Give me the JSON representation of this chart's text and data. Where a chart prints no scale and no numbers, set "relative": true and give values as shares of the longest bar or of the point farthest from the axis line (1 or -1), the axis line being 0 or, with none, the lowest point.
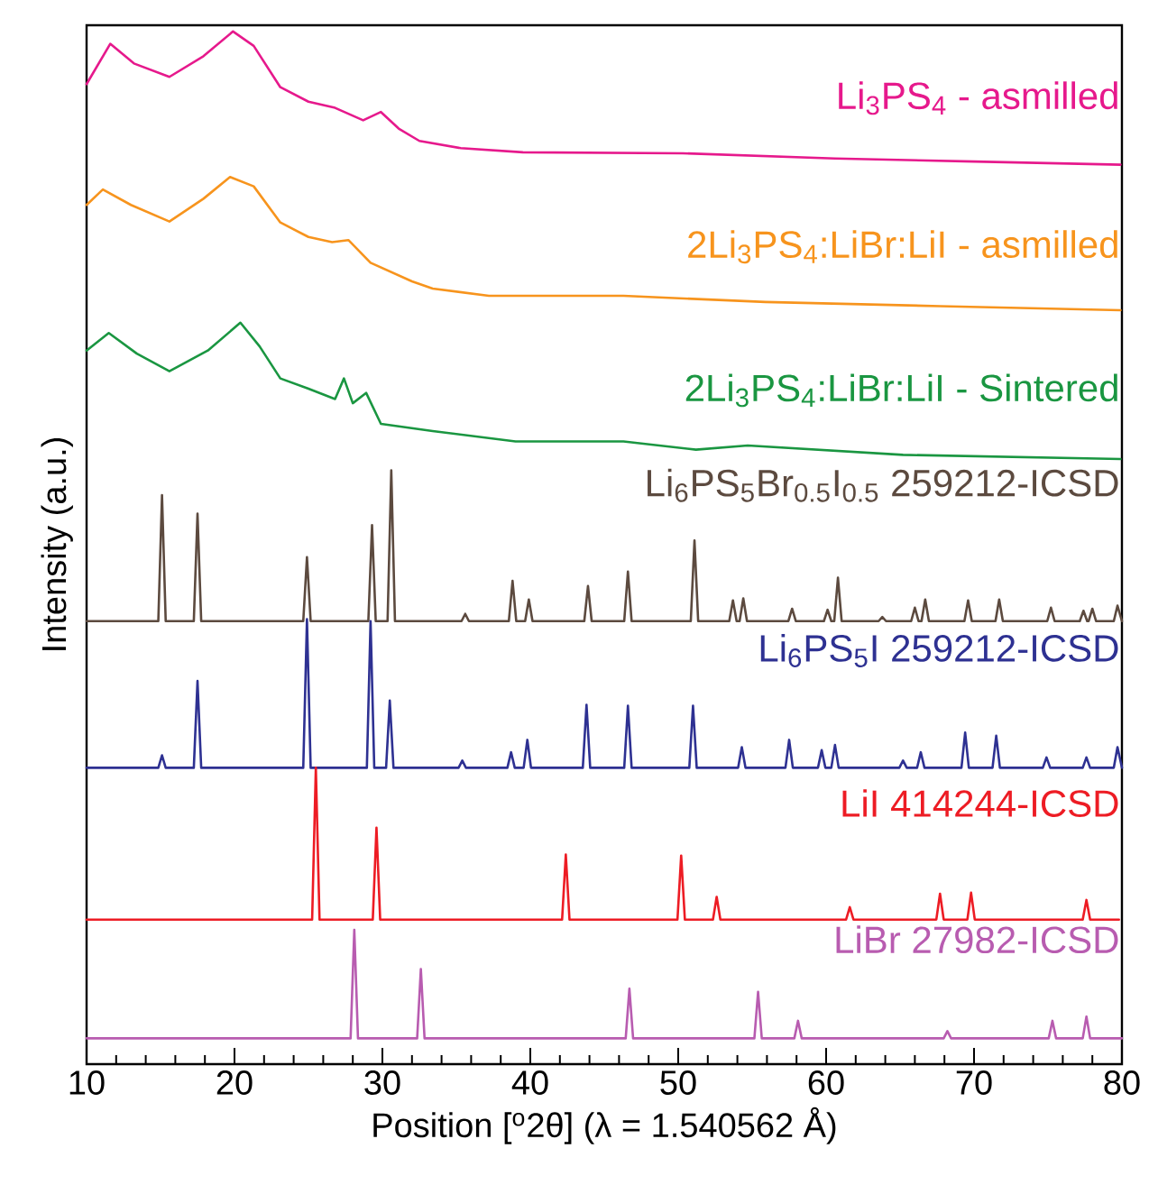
{
  "chart_data": {
    "type": "line",
    "relative": true,
    "xlabel": "Position [$^{o}$2θ] (λ = 1.540562 Å)",
    "ylabel": "Intensity (a.u.)",
    "xlim": [
      10,
      80
    ],
    "xticks": [
      10,
      20,
      30,
      40,
      50,
      60,
      70,
      80
    ],
    "series": [
      {
        "name": "Li$_{3}$PS$_{4}$ - asmilled",
        "color": "#e6198c",
        "x": [
          10,
          11.6,
          13.2,
          15.6,
          17.9,
          19.9,
          21.3,
          23.1,
          25,
          26.8,
          28.7,
          29.9,
          31.1,
          32.5,
          35.3,
          39.5,
          50.3,
          60.6,
          70,
          79.9
        ],
        "values": [
          0.949,
          0.988,
          0.969,
          0.956,
          0.976,
          1.0,
          0.986,
          0.946,
          0.932,
          0.926,
          0.914,
          0.922,
          0.906,
          0.894,
          0.887,
          0.883,
          0.882,
          0.877,
          0.874,
          0.871
        ]
      },
      {
        "name": "2Li$_{3}$PS$_{4}$:LiBr:LiI - asmilled",
        "color": "#f7941d",
        "x": [
          10,
          11.1,
          13,
          15.6,
          17.9,
          19.7,
          21.3,
          23.1,
          25,
          26.6,
          27.7,
          29.2,
          32,
          33.4,
          37.2,
          46.3,
          55.9,
          67.7,
          79.9
        ],
        "values": [
          0.832,
          0.847,
          0.832,
          0.816,
          0.838,
          0.859,
          0.85,
          0.815,
          0.801,
          0.796,
          0.798,
          0.776,
          0.758,
          0.751,
          0.744,
          0.744,
          0.738,
          0.734,
          0.73
        ]
      },
      {
        "name": "2Li$_{3}$PS$_{4}$:LiBr:LiI - Sintered",
        "color": "#1a9641",
        "x": [
          10,
          11.5,
          13.4,
          15.6,
          18.2,
          20.4,
          21.7,
          23.1,
          25,
          26.8,
          27.4,
          28,
          28.9,
          29.9,
          33.4,
          39,
          46.3,
          51.2,
          54.7,
          65.2,
          79.9
        ],
        "values": [
          0.691,
          0.708,
          0.688,
          0.671,
          0.691,
          0.718,
          0.695,
          0.664,
          0.654,
          0.644,
          0.664,
          0.64,
          0.65,
          0.62,
          0.613,
          0.603,
          0.603,
          0.595,
          0.599,
          0.59,
          0.586
        ]
      },
      {
        "name": "Li$_{6}$PS$_{5}$Br$_{0.5}$I$_{0.5}$ 259212-ICSD",
        "color": "#5c4a3f",
        "x": [
          10,
          14.85,
          15.1,
          15.35,
          17.25,
          17.5,
          17.75,
          24.65,
          24.9,
          25.15,
          29.05,
          29.3,
          29.55,
          30.35,
          30.6,
          30.85,
          35.35,
          35.6,
          35.85,
          38.55,
          38.8,
          39.05,
          39.65,
          39.9,
          40.15,
          43.65,
          43.9,
          44.15,
          46.35,
          46.6,
          46.85,
          50.85,
          51.1,
          51.35,
          53.45,
          53.7,
          53.95,
          54.15,
          54.4,
          54.65,
          57.45,
          57.7,
          57.95,
          59.85,
          60.1,
          60.35,
          60.55,
          60.8,
          61.05,
          63.55,
          63.8,
          64.05,
          65.75,
          66,
          66.25,
          66.45,
          66.7,
          66.95,
          69.35,
          69.6,
          69.85,
          71.45,
          71.7,
          71.95,
          74.95,
          75.2,
          75.45,
          77.15,
          77.4,
          77.65,
          77.75,
          78,
          78.25,
          79.45,
          79.7,
          80
        ],
        "values": [
          0.429,
          0.429,
          0.551,
          0.429,
          0.429,
          0.533,
          0.429,
          0.429,
          0.491,
          0.429,
          0.429,
          0.522,
          0.429,
          0.429,
          0.575,
          0.429,
          0.429,
          0.436,
          0.429,
          0.429,
          0.468,
          0.429,
          0.429,
          0.45,
          0.429,
          0.429,
          0.463,
          0.429,
          0.429,
          0.477,
          0.429,
          0.429,
          0.507,
          0.429,
          0.429,
          0.449,
          0.429,
          0.429,
          0.451,
          0.429,
          0.429,
          0.441,
          0.429,
          0.429,
          0.44,
          0.429,
          0.429,
          0.471,
          0.429,
          0.429,
          0.433,
          0.429,
          0.429,
          0.442,
          0.429,
          0.429,
          0.45,
          0.429,
          0.429,
          0.449,
          0.429,
          0.429,
          0.45,
          0.429,
          0.429,
          0.442,
          0.429,
          0.429,
          0.439,
          0.429,
          0.429,
          0.441,
          0.429,
          0.429,
          0.444,
          0.429
        ]
      },
      {
        "name": "Li$_{6}$PS$_{5}$I 259212-ICSD",
        "color": "#2e3192",
        "x": [
          10,
          14.85,
          15.1,
          15.35,
          17.25,
          17.5,
          17.75,
          24.65,
          24.9,
          25.15,
          28.95,
          29.2,
          29.45,
          30.25,
          30.5,
          30.75,
          35.15,
          35.4,
          35.65,
          38.45,
          38.7,
          38.95,
          39.55,
          39.8,
          40.05,
          43.55,
          43.8,
          44.05,
          46.35,
          46.6,
          46.85,
          50.75,
          51,
          51.25,
          54.05,
          54.3,
          54.55,
          57.25,
          57.5,
          57.75,
          59.45,
          59.7,
          59.95,
          60.35,
          60.6,
          60.85,
          64.95,
          65.2,
          65.45,
          66.15,
          66.4,
          66.65,
          69.15,
          69.4,
          69.65,
          71.25,
          71.5,
          71.75,
          74.65,
          74.9,
          75.15,
          77.35,
          77.6,
          77.85,
          79.45,
          79.7,
          80
        ],
        "values": [
          0.287,
          0.287,
          0.299,
          0.287,
          0.287,
          0.371,
          0.287,
          0.287,
          0.431,
          0.287,
          0.287,
          0.429,
          0.287,
          0.287,
          0.352,
          0.287,
          0.287,
          0.294,
          0.287,
          0.287,
          0.302,
          0.287,
          0.287,
          0.314,
          0.287,
          0.287,
          0.348,
          0.287,
          0.287,
          0.347,
          0.287,
          0.287,
          0.347,
          0.287,
          0.287,
          0.307,
          0.287,
          0.287,
          0.314,
          0.287,
          0.287,
          0.304,
          0.287,
          0.287,
          0.309,
          0.287,
          0.287,
          0.294,
          0.287,
          0.287,
          0.302,
          0.287,
          0.287,
          0.321,
          0.287,
          0.287,
          0.318,
          0.287,
          0.287,
          0.297,
          0.287,
          0.287,
          0.297,
          0.287,
          0.287,
          0.307,
          0.287
        ]
      },
      {
        "name": "LiI 414244-ICSD",
        "color": "#ed1c24",
        "x": [
          10,
          25.25,
          25.5,
          25.75,
          29.35,
          29.6,
          29.85,
          42.15,
          42.4,
          42.65,
          49.95,
          50.2,
          50.45,
          52.35,
          52.6,
          52.85,
          61.35,
          61.6,
          61.85,
          67.45,
          67.7,
          67.95,
          69.55,
          69.8,
          70.05,
          77.35,
          77.6,
          77.85,
          79.8
        ],
        "values": [
          0.14,
          0.14,
          0.287,
          0.14,
          0.14,
          0.229,
          0.14,
          0.14,
          0.203,
          0.14,
          0.14,
          0.202,
          0.14,
          0.14,
          0.162,
          0.14,
          0.14,
          0.152,
          0.14,
          0.14,
          0.165,
          0.14,
          0.14,
          0.166,
          0.14,
          0.14,
          0.159,
          0.14,
          0.14
        ]
      },
      {
        "name": "LiBr 27982-ICSD",
        "color": "#b85cb0",
        "x": [
          10,
          27.85,
          28.1,
          28.35,
          32.35,
          32.6,
          32.85,
          46.45,
          46.7,
          46.95,
          55.15,
          55.4,
          55.65,
          57.85,
          58.1,
          58.35,
          67.95,
          68.2,
          68.45,
          75.05,
          75.3,
          75.55,
          77.35,
          77.6,
          77.85,
          80
        ],
        "values": [
          0.025,
          0.025,
          0.13,
          0.025,
          0.025,
          0.092,
          0.025,
          0.025,
          0.073,
          0.025,
          0.025,
          0.07,
          0.025,
          0.025,
          0.042,
          0.025,
          0.025,
          0.032,
          0.025,
          0.025,
          0.042,
          0.025,
          0.025,
          0.046,
          0.025,
          0.025
        ]
      }
    ]
  }
}
